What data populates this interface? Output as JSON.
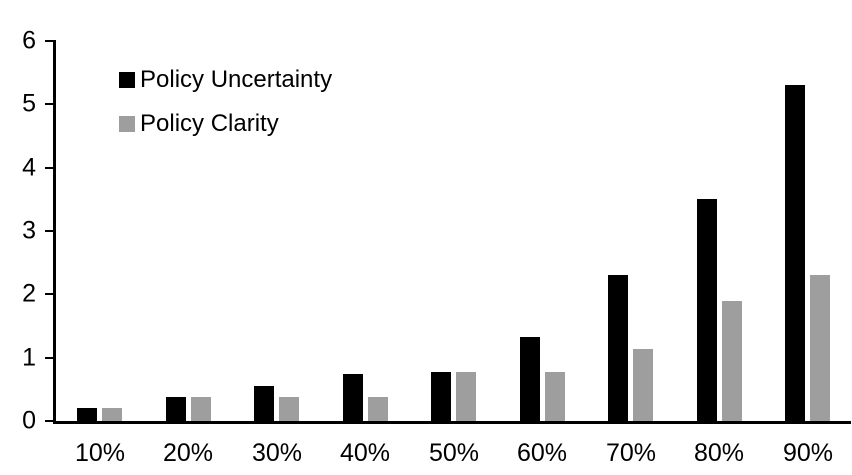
{
  "chart_data": {
    "type": "bar",
    "title": "",
    "xlabel": "",
    "ylabel": "",
    "categories": [
      "10%",
      "20%",
      "30%",
      "40%",
      "50%",
      "60%",
      "70%",
      "80%",
      "90%"
    ],
    "series": [
      {
        "name": "Policy Uncertainty",
        "color": "#000000",
        "values": [
          0.2,
          0.38,
          0.56,
          0.75,
          0.78,
          1.33,
          2.3,
          3.5,
          5.3
        ]
      },
      {
        "name": "Policy Clarity",
        "color": "#9e9e9e",
        "values": [
          0.2,
          0.38,
          0.38,
          0.38,
          0.77,
          0.77,
          1.13,
          1.9,
          2.3
        ]
      }
    ],
    "ylim": [
      0,
      6
    ],
    "yticks": [
      0,
      1,
      2,
      3,
      4,
      5,
      6
    ],
    "grid": false,
    "legend_position": "top-left-inside"
  },
  "colors": {
    "background": "#ffffff",
    "axis": "#000000",
    "text": "#000000",
    "bar_uncertainty": "#000000",
    "bar_clarity": "#9e9e9e"
  }
}
